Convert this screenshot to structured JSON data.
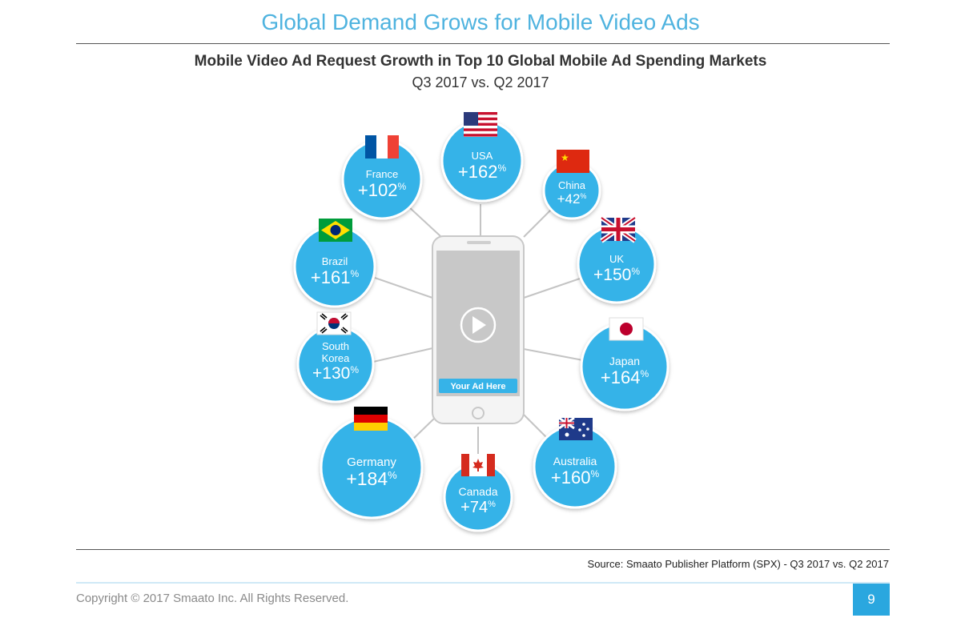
{
  "page_title": "Global Demand Grows for Mobile Video Ads",
  "subtitle": "Mobile Video Ad Request Growth in Top 10 Global Mobile Ad Spending Markets",
  "period": "Q3 2017 vs. Q2 2017",
  "phone": {
    "ad_label": "Your Ad Here"
  },
  "markets": [
    {
      "id": "usa",
      "name": "USA",
      "value": "+162",
      "suffix": "%"
    },
    {
      "id": "china",
      "name": "China",
      "value": "+42",
      "suffix": "%"
    },
    {
      "id": "uk",
      "name": "UK",
      "value": "+150",
      "suffix": "%"
    },
    {
      "id": "japan",
      "name": "Japan",
      "value": "+164",
      "suffix": "%"
    },
    {
      "id": "australia",
      "name": "Australia",
      "value": "+160",
      "suffix": "%"
    },
    {
      "id": "canada",
      "name": "Canada",
      "value": "+74",
      "suffix": "%"
    },
    {
      "id": "germany",
      "name": "Germany",
      "value": "+184",
      "suffix": "%"
    },
    {
      "id": "south-korea",
      "name": "South Korea",
      "value": "+130",
      "suffix": "%"
    },
    {
      "id": "brazil",
      "name": "Brazil",
      "value": "+161",
      "suffix": "%"
    },
    {
      "id": "france",
      "name": "France",
      "value": "+102",
      "suffix": "%"
    }
  ],
  "source": "Source: Smaato Publisher Platform (SPX) - Q3 2017 vs. Q2 2017",
  "copyright": "Copyright © 2017 Smaato Inc. All Rights Reserved.",
  "page_number": "9",
  "colors": {
    "bubble": "#36b3e8",
    "accent": "#4fb3df",
    "page_badge": "#2aa7df"
  }
}
